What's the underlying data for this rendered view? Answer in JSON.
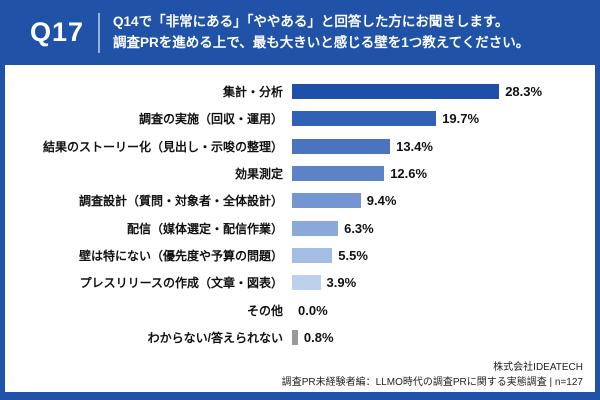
{
  "header": {
    "question_number": "Q17",
    "title_line1": "Q14で「非常にある」「ややある」と回答した方にお聞きします。",
    "title_line2": "調査PRを進める上で、最も大きいと感じる壁を1つ教えてください。"
  },
  "chart_data": {
    "type": "bar",
    "orientation": "horizontal",
    "unit": "%",
    "xlim": [
      0,
      30
    ],
    "grid": false,
    "legend": "none",
    "categories": [
      "集計・分析",
      "調査の実施（回収・運用）",
      "結果のストーリー化（見出し・示唆の整理）",
      "効果測定",
      "調査設計（質問・対象者・全体設計）",
      "配信（媒体選定・配信作業）",
      "壁は特にない（優先度や予算の問題）",
      "プレスリリースの作成（文章・図表）",
      "その他",
      "わからない/答えられない"
    ],
    "values": [
      28.3,
      19.7,
      13.4,
      12.6,
      9.4,
      6.3,
      5.5,
      3.9,
      0.0,
      0.8
    ],
    "value_labels": [
      "28.3%",
      "19.7%",
      "13.4%",
      "12.6%",
      "9.4%",
      "6.3%",
      "5.5%",
      "3.9%",
      "0.0%",
      "0.8%"
    ],
    "bar_colors": [
      "#1f4fa8",
      "#3161b4",
      "#4a74c0",
      "#5c82c8",
      "#7396d2",
      "#8aa9da",
      "#a3bde4",
      "#bcd1ec",
      "#bcd1ec",
      "#999999"
    ]
  },
  "footer": {
    "company": "株式会社IDEATECH",
    "source": "調査PR未経験者編：LLMO時代の調査PRに関する実態調査 | n=127"
  },
  "colors": {
    "frame_blue": "#2052a8",
    "panel_bg": "#ffffff",
    "text_dark": "#111111"
  }
}
